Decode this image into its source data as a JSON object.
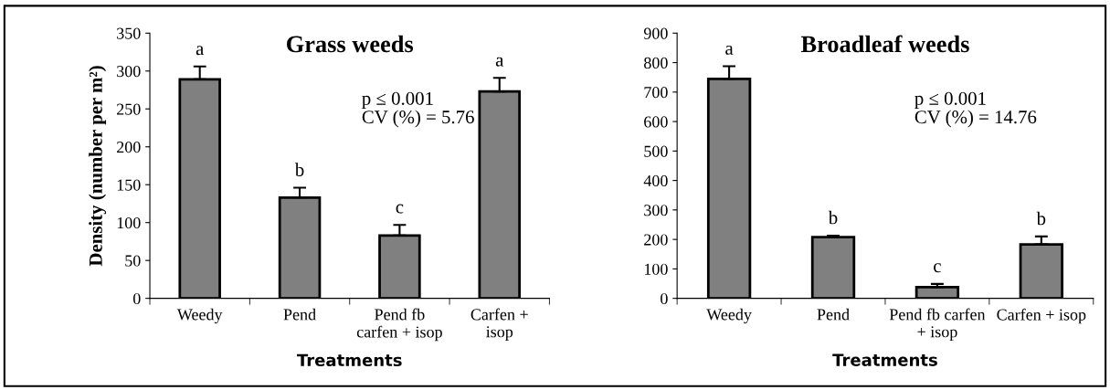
{
  "chart_data": [
    {
      "type": "bar",
      "title": "Grass weeds",
      "xlabel": "Treatments",
      "ylabel": "Density (number per m²)",
      "categories": [
        "Weedy",
        "Pend",
        "Pend fb\ncarfen + isop",
        "Carfen +\nisop"
      ],
      "values": [
        289,
        133,
        83,
        273
      ],
      "errors": [
        17,
        13,
        14,
        18
      ],
      "color": "#808080",
      "ylim": [
        0,
        350
      ],
      "yticks": [
        0,
        50,
        100,
        150,
        200,
        250,
        300,
        350
      ],
      "annotations": [
        "a",
        "b",
        "c",
        "a",
        "p ≤ 0.001\nCV (%) = 5.76"
      ]
    },
    {
      "type": "bar",
      "title": "Broadleaf weeds",
      "xlabel": "Treatments",
      "categories": [
        "Weedy",
        "Pend",
        "Pend fb carfen\n+ isop",
        "Carfen + isop"
      ],
      "values": [
        745,
        208,
        38,
        183
      ],
      "errors": [
        43,
        5,
        11,
        27
      ],
      "color": "#808080",
      "ylim": [
        0,
        900
      ],
      "yticks": [
        0,
        100,
        200,
        300,
        400,
        500,
        600,
        700,
        800,
        900
      ],
      "annotations": [
        "a",
        "b",
        "c",
        "b",
        "p ≤ 0.001\nCV (%) = 14.76"
      ]
    }
  ]
}
